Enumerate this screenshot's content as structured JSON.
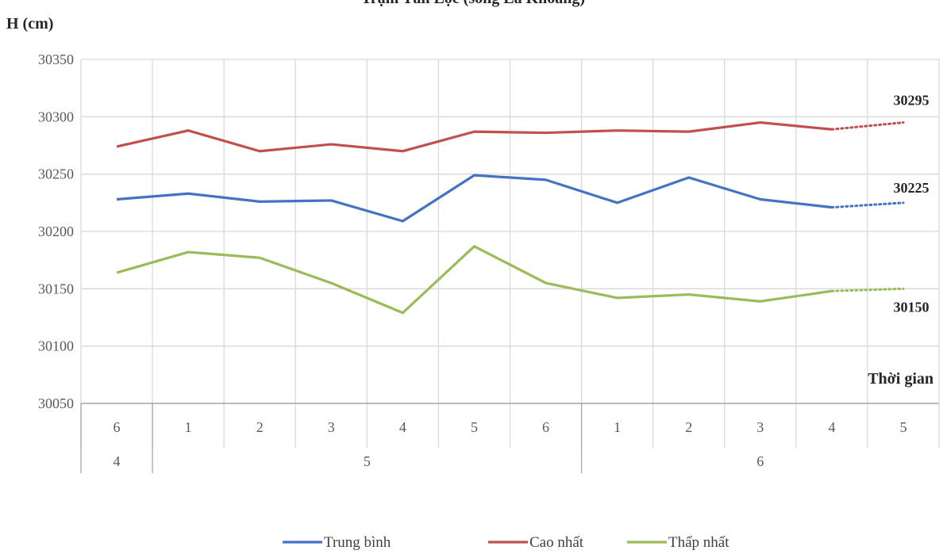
{
  "chart_data": {
    "type": "line",
    "title": "Trạm Tân Lộc (sông Lá Khoang)",
    "ylabel": "H (cm)",
    "xlabel": "Thời gian",
    "ylim": [
      30050,
      30350
    ],
    "yticks": [
      "30050",
      "30100",
      "30150",
      "30200",
      "30250",
      "30300",
      "30350"
    ],
    "categories": [
      "6",
      "1",
      "2",
      "3",
      "4",
      "5",
      "6",
      "1",
      "2",
      "3",
      "4",
      "5"
    ],
    "groups": [
      {
        "label": "4",
        "count": 1
      },
      {
        "label": "5",
        "count": 6
      },
      {
        "label": "6",
        "count": 5
      }
    ],
    "grid": true,
    "legend_position": "bottom",
    "series": [
      {
        "name": "Trung bình",
        "color": "#4472C4",
        "values": [
          30228,
          30233,
          30226,
          30227,
          30209,
          30249,
          30245,
          30225,
          30247,
          30228,
          30221,
          null
        ],
        "forecast": 30225,
        "forecast_label": "30225"
      },
      {
        "name": "Cao nhất",
        "color": "#C0504D",
        "values": [
          30274,
          30288,
          30270,
          30276,
          30270,
          30287,
          30286,
          30288,
          30287,
          30295,
          30289,
          null
        ],
        "forecast": 30295,
        "forecast_label": "30295"
      },
      {
        "name": "Thấp nhất",
        "color": "#9BBB59",
        "values": [
          30164,
          30182,
          30177,
          30155,
          30129,
          30187,
          30155,
          30142,
          30145,
          30139,
          30148,
          null
        ],
        "forecast": 30150,
        "forecast_label": "30150"
      }
    ]
  }
}
